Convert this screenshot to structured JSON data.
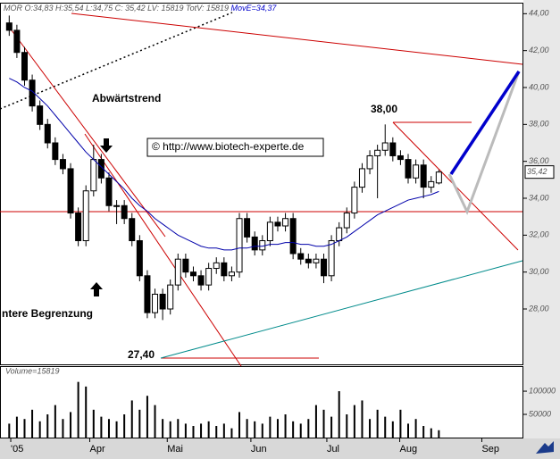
{
  "chart_data": {
    "type": "candlestick",
    "title": "MOR O:34,83 H:35,54 L:34,75 C: 35,42 LV: 15819 TotV: 15819",
    "ma_label": "MovE=34,37",
    "volume_label": "Volume=15819",
    "last_price_label": "35,42",
    "annotations": [
      "Abwärtstrend",
      "38,00",
      "27,40",
      "ntere Begrenzung",
      "© http://www.biotech-experte.de"
    ],
    "xlim": [
      -1.2,
      66.9
    ],
    "xticks": [
      {
        "value": 0.2,
        "label": "'05"
      },
      {
        "value": 10.5,
        "label": "Apr"
      },
      {
        "value": 20.6,
        "label": "Mai"
      },
      {
        "value": 31.5,
        "label": "Jun"
      },
      {
        "value": 41.4,
        "label": "Jul"
      },
      {
        "value": 50.9,
        "label": "Aug"
      },
      {
        "value": 61.6,
        "label": "Sep"
      }
    ],
    "ylim": [
      25,
      44.5
    ],
    "yticks": [
      {
        "value": 44,
        "label": "44,00"
      },
      {
        "value": 42,
        "label": "42,00"
      },
      {
        "value": 40,
        "label": "40,00"
      },
      {
        "value": 38,
        "label": "38,00"
      },
      {
        "value": 36,
        "label": "36,00"
      },
      {
        "value": 34,
        "label": "34,00"
      },
      {
        "value": 32,
        "label": "32,00"
      },
      {
        "value": 30,
        "label": "30,00"
      },
      {
        "value": 28,
        "label": "28,00"
      }
    ],
    "open": [
      43.5,
      43.1,
      41.9,
      40.4,
      39.0,
      38.0,
      37.0,
      36.1,
      35.6,
      33.2,
      31.7,
      34.4,
      36.1,
      35.1,
      33.6,
      33.6,
      32.9,
      31.7,
      29.8,
      27.8,
      28.8,
      28.0,
      29.3,
      30.7,
      30.0,
      29.8,
      29.3,
      30.2,
      30.5,
      29.8,
      30.0,
      32.9,
      31.9,
      31.2,
      31.7,
      32.7,
      32.5,
      32.9,
      31.0,
      30.7,
      30.5,
      30.7,
      29.8,
      31.7,
      32.4,
      33.2,
      34.6,
      35.6,
      36.3,
      36.6,
      37.0,
      36.3,
      36.1,
      35.1,
      35.8,
      34.6,
      34.83
    ],
    "high": [
      43.9,
      43.4,
      42.2,
      40.7,
      39.3,
      38.3,
      37.3,
      36.4,
      35.9,
      33.5,
      34.7,
      36.9,
      36.4,
      35.4,
      33.9,
      33.9,
      33.2,
      32.0,
      30.1,
      29.1,
      29.1,
      29.6,
      31.0,
      31.0,
      30.3,
      30.1,
      30.5,
      30.8,
      30.8,
      30.3,
      33.2,
      33.2,
      32.2,
      32.0,
      33.0,
      33.0,
      33.2,
      33.2,
      31.3,
      31.0,
      31.0,
      31.0,
      32.0,
      32.7,
      33.5,
      34.9,
      35.9,
      36.6,
      36.9,
      38.0,
      37.3,
      36.6,
      36.4,
      36.1,
      36.1,
      35.2,
      35.54
    ],
    "low": [
      42.8,
      41.6,
      40.1,
      38.7,
      37.7,
      36.7,
      35.8,
      35.3,
      32.9,
      31.4,
      31.4,
      34.1,
      34.8,
      33.3,
      32.6,
      32.6,
      31.4,
      29.5,
      27.5,
      27.5,
      27.4,
      27.7,
      29.0,
      29.7,
      29.5,
      29.0,
      29.0,
      29.9,
      29.5,
      29.5,
      29.7,
      31.6,
      30.9,
      30.9,
      31.4,
      32.2,
      32.2,
      30.7,
      30.4,
      30.2,
      30.2,
      29.4,
      29.5,
      31.4,
      32.1,
      32.9,
      34.3,
      35.3,
      34.0,
      36.3,
      36.0,
      35.8,
      34.8,
      34.8,
      34.0,
      34.3,
      34.75
    ],
    "close": [
      43.1,
      41.9,
      40.4,
      39.0,
      38.0,
      37.0,
      36.1,
      35.6,
      33.2,
      31.7,
      34.4,
      36.1,
      35.1,
      33.6,
      33.6,
      32.9,
      31.7,
      29.8,
      27.8,
      28.8,
      28.0,
      29.3,
      30.7,
      30.0,
      29.8,
      29.3,
      30.2,
      30.5,
      29.8,
      30.0,
      32.9,
      31.9,
      31.2,
      31.7,
      32.7,
      32.5,
      32.9,
      31.0,
      30.7,
      30.5,
      30.7,
      29.8,
      31.7,
      32.4,
      33.2,
      34.6,
      35.6,
      36.3,
      36.6,
      37.0,
      36.3,
      36.1,
      35.1,
      35.8,
      34.6,
      34.9,
      35.42
    ],
    "ma": {
      "color": "#0000aa",
      "values": [
        40.5,
        40.3,
        40.0,
        39.8,
        39.4,
        39.0,
        38.5,
        38.0,
        37.5,
        37.0,
        36.5,
        36.1,
        35.7,
        35.3,
        34.9,
        34.5,
        34.0,
        33.6,
        33.3,
        32.9,
        32.6,
        32.3,
        32.0,
        31.8,
        31.6,
        31.4,
        31.3,
        31.3,
        31.2,
        31.2,
        31.3,
        31.3,
        31.4,
        31.4,
        31.5,
        31.5,
        31.6,
        31.6,
        31.5,
        31.5,
        31.4,
        31.4,
        31.5,
        31.7,
        31.9,
        32.2,
        32.5,
        32.8,
        33.1,
        33.3,
        33.5,
        33.7,
        33.9,
        34.0,
        34.1,
        34.2,
        34.37
      ]
    },
    "volume": {
      "ylim": [
        0,
        154000
      ],
      "yticks": [
        100000,
        50000
      ],
      "values": [
        30000,
        45000,
        40000,
        60000,
        35000,
        50000,
        70000,
        40000,
        55000,
        120000,
        110000,
        60000,
        45000,
        40000,
        35000,
        50000,
        80000,
        60000,
        90000,
        70000,
        40000,
        35000,
        40000,
        30000,
        25000,
        30000,
        35000,
        25000,
        30000,
        20000,
        55000,
        40000,
        35000,
        30000,
        45000,
        40000,
        50000,
        35000,
        30000,
        40000,
        70000,
        60000,
        45000,
        100000,
        50000,
        70000,
        80000,
        40000,
        60000,
        45000,
        35000,
        60000,
        30000,
        40000,
        25000,
        20000,
        15819
      ]
    }
  }
}
